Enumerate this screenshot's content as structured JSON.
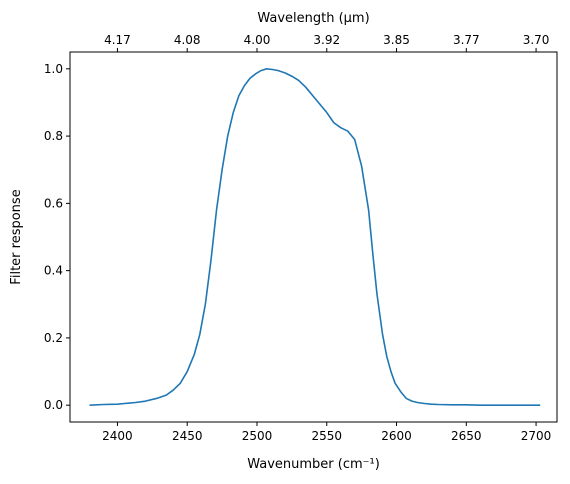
{
  "chart_data": {
    "type": "line",
    "title": "",
    "xlabel": "Wavenumber (cm⁻¹)",
    "ylabel": "Filter response",
    "top_xlabel": "Wavelength (μm)",
    "xlim": [
      2366,
      2715
    ],
    "ylim": [
      -0.05,
      1.05
    ],
    "grid": false,
    "x_ticks": [
      2400,
      2450,
      2500,
      2550,
      2600,
      2650,
      2700
    ],
    "y_ticks": [
      0.0,
      0.2,
      0.4,
      0.6,
      0.8,
      1.0
    ],
    "top_ticks": [
      {
        "label": "4.17",
        "wavenumber": 2400
      },
      {
        "label": "4.08",
        "wavenumber": 2450
      },
      {
        "label": "4.00",
        "wavenumber": 2500
      },
      {
        "label": "3.92",
        "wavenumber": 2550
      },
      {
        "label": "3.85",
        "wavenumber": 2600
      },
      {
        "label": "3.77",
        "wavenumber": 2650
      },
      {
        "label": "3.70",
        "wavenumber": 2700
      }
    ],
    "series": [
      {
        "color": "#1f77b4",
        "x": [
          2380,
          2390,
          2400,
          2405,
          2413,
          2420,
          2428,
          2435,
          2440,
          2445,
          2450,
          2455,
          2459,
          2463,
          2467,
          2471,
          2475,
          2479,
          2483,
          2487,
          2491,
          2495,
          2499,
          2503,
          2507,
          2511,
          2515,
          2520,
          2525,
          2530,
          2535,
          2540,
          2545,
          2550,
          2555,
          2560,
          2565,
          2570,
          2575,
          2580,
          2583,
          2586,
          2590,
          2593,
          2596,
          2599,
          2603,
          2607,
          2611,
          2615,
          2620,
          2625,
          2630,
          2640,
          2650,
          2660,
          2670,
          2680,
          2690,
          2703
        ],
        "y": [
          0.0,
          0.002,
          0.003,
          0.005,
          0.008,
          0.012,
          0.02,
          0.03,
          0.045,
          0.065,
          0.1,
          0.15,
          0.21,
          0.3,
          0.43,
          0.58,
          0.7,
          0.8,
          0.87,
          0.92,
          0.95,
          0.972,
          0.985,
          0.995,
          1.0,
          0.998,
          0.995,
          0.988,
          0.978,
          0.965,
          0.945,
          0.92,
          0.895,
          0.87,
          0.84,
          0.825,
          0.815,
          0.79,
          0.71,
          0.58,
          0.45,
          0.33,
          0.21,
          0.145,
          0.1,
          0.065,
          0.04,
          0.02,
          0.012,
          0.008,
          0.005,
          0.003,
          0.002,
          0.001,
          0.001,
          0.0,
          0.0,
          0.0,
          0.0,
          0.0
        ]
      }
    ]
  }
}
